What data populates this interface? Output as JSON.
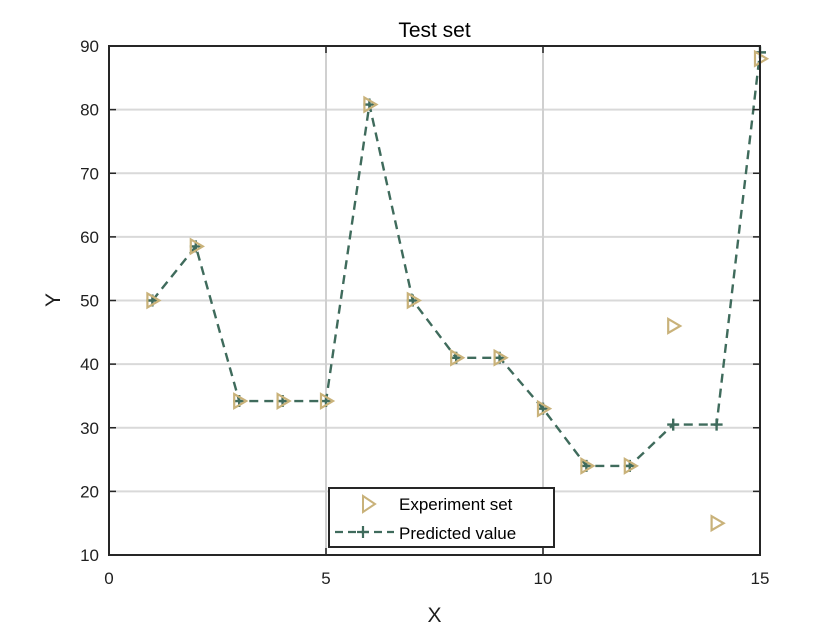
{
  "chart_data": {
    "type": "line",
    "title": "Test set",
    "xlabel": "X",
    "ylabel": "Y",
    "xlim": [
      0,
      15
    ],
    "ylim": [
      10,
      90
    ],
    "xticks": [
      0,
      5,
      10,
      15
    ],
    "yticks": [
      10,
      20,
      30,
      40,
      50,
      60,
      70,
      80,
      90
    ],
    "grid": true,
    "legend_position": "bottom-center",
    "series": [
      {
        "name": "Experiment set",
        "style": "markers",
        "marker": "triangle-right",
        "color": "#c9b27a",
        "x": [
          1,
          2,
          3,
          4,
          5,
          6,
          7,
          8,
          9,
          10,
          11,
          12,
          13,
          14,
          15
        ],
        "values": [
          50,
          58.5,
          34.2,
          34.2,
          34.2,
          80.8,
          50,
          41,
          41,
          33,
          24,
          24,
          46,
          15,
          88
        ]
      },
      {
        "name": "Predicted value",
        "style": "dashed-line-with-plus",
        "marker": "plus",
        "color": "#3f6b5c",
        "x": [
          1,
          2,
          3,
          4,
          5,
          6,
          7,
          8,
          9,
          10,
          11,
          12,
          13,
          14,
          15
        ],
        "values": [
          50,
          58.5,
          34.2,
          34.2,
          34.2,
          80.8,
          50,
          41,
          41,
          33,
          24,
          24,
          30.5,
          30.5,
          89
        ]
      }
    ]
  }
}
